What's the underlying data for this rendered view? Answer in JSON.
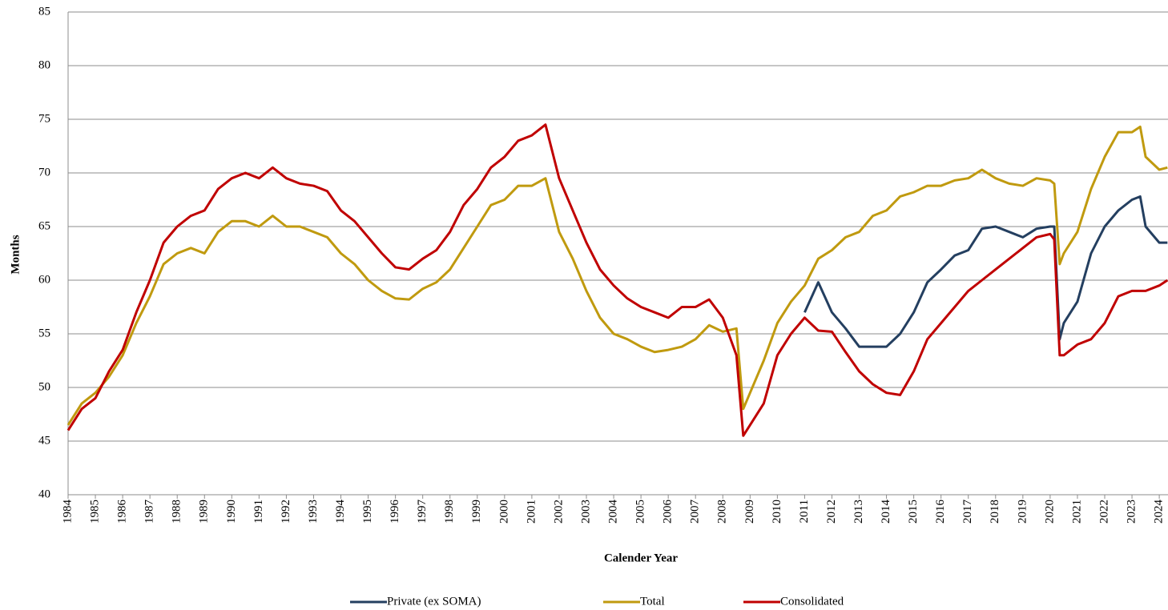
{
  "chart_data": {
    "type": "line",
    "xlabel": "Calender Year",
    "ylabel": "Months",
    "xlim": [
      1984,
      2024.32
    ],
    "xticks": [
      1984,
      1985,
      1986,
      1987,
      1988,
      1989,
      1990,
      1991,
      1992,
      1993,
      1994,
      1995,
      1996,
      1997,
      1998,
      1999,
      2000,
      2001,
      2002,
      2003,
      2004,
      2005,
      2006,
      2007,
      2008,
      2009,
      2010,
      2011,
      2012,
      2013,
      2014,
      2015,
      2016,
      2017,
      2018,
      2019,
      2020,
      2021,
      2022,
      2023,
      2024
    ],
    "ylim": [
      40,
      85
    ],
    "yticks": [
      40,
      45,
      50,
      55,
      60,
      65,
      70,
      75,
      80,
      85
    ],
    "grid": true,
    "legend": "bottom",
    "x": [
      1984,
      1984.5,
      1985,
      1985.5,
      1986,
      1986.5,
      1987,
      1987.5,
      1988,
      1988.5,
      1989,
      1989.5,
      1990,
      1990.5,
      1991,
      1991.5,
      1992,
      1992.5,
      1993,
      1993.5,
      1994,
      1994.5,
      1995,
      1995.5,
      1996,
      1996.5,
      1997,
      1997.5,
      1998,
      1998.5,
      1999,
      1999.5,
      2000,
      2000.5,
      2001,
      2001.5,
      2002,
      2002.5,
      2003,
      2003.5,
      2004,
      2004.5,
      2005,
      2005.5,
      2006,
      2006.5,
      2007,
      2007.5,
      2008,
      2008.5,
      2008.75,
      2009,
      2009.5,
      2010,
      2010.5,
      2011,
      2011.5,
      2012,
      2012.5,
      2013,
      2013.5,
      2014,
      2014.5,
      2015,
      2015.5,
      2016,
      2016.5,
      2017,
      2017.5,
      2018,
      2018.5,
      2019,
      2019.5,
      2020,
      2020.15,
      2020.35,
      2020.5,
      2021,
      2021.5,
      2022,
      2022.5,
      2023,
      2023.3,
      2023.5,
      2024,
      2024.3
    ],
    "series": [
      {
        "name": "Private (ex SOMA)",
        "color": "#243f60",
        "values": [
          null,
          null,
          null,
          null,
          null,
          null,
          null,
          null,
          null,
          null,
          null,
          null,
          null,
          null,
          null,
          null,
          null,
          null,
          null,
          null,
          null,
          null,
          null,
          null,
          null,
          null,
          null,
          null,
          null,
          null,
          null,
          null,
          null,
          null,
          null,
          null,
          null,
          null,
          null,
          null,
          null,
          null,
          null,
          null,
          null,
          null,
          null,
          null,
          null,
          null,
          null,
          null,
          null,
          null,
          null,
          57,
          59.8,
          57,
          55.5,
          53.8,
          53.8,
          53.8,
          55,
          57,
          59.8,
          61,
          62.3,
          62.8,
          64.8,
          65,
          64.5,
          64,
          64.8,
          65,
          65,
          54.5,
          56,
          58,
          62.5,
          65,
          66.5,
          67.5,
          67.8,
          65,
          63.5,
          63.5
        ]
      },
      {
        "name": "Total",
        "color": "#c09a0f",
        "values": [
          46.5,
          48.5,
          49.5,
          51,
          53,
          56,
          58.5,
          61.5,
          62.5,
          63,
          62.5,
          64.5,
          65.5,
          65.5,
          65,
          66,
          65,
          65,
          64.5,
          64,
          62.5,
          61.5,
          60,
          59,
          58.3,
          58.2,
          59.2,
          59.8,
          61,
          63,
          65,
          67,
          67.5,
          68.8,
          68.8,
          69.5,
          64.5,
          62,
          59,
          56.5,
          55,
          54.5,
          53.8,
          53.3,
          53.5,
          53.8,
          54.5,
          55.8,
          55.2,
          55.5,
          48,
          49.5,
          52.5,
          56,
          58,
          59.5,
          62,
          62.8,
          64,
          64.5,
          66,
          66.5,
          67.8,
          68.2,
          68.8,
          68.8,
          69.3,
          69.5,
          70.3,
          69.5,
          69,
          68.8,
          69.5,
          69.3,
          69,
          61.5,
          62.5,
          64.5,
          68.5,
          71.5,
          73.8,
          73.8,
          74.3,
          71.5,
          70.3,
          70.5
        ]
      },
      {
        "name": "Consolidated",
        "color": "#c00000",
        "values": [
          46,
          48,
          49,
          51.5,
          53.5,
          57,
          60,
          63.5,
          65,
          66,
          66.5,
          68.5,
          69.5,
          70,
          69.5,
          70.5,
          69.5,
          69,
          68.8,
          68.3,
          66.5,
          65.5,
          64,
          62.5,
          61.2,
          61,
          62,
          62.8,
          64.5,
          67,
          68.5,
          70.5,
          71.5,
          73,
          73.5,
          74.5,
          69.5,
          66.5,
          63.5,
          61,
          59.5,
          58.3,
          57.5,
          57,
          56.5,
          57.5,
          57.5,
          58.2,
          56.5,
          53,
          45.5,
          46.5,
          48.5,
          53,
          55,
          56.5,
          55.3,
          55.2,
          53.3,
          51.5,
          50.3,
          49.5,
          49.3,
          51.5,
          54.5,
          56,
          57.5,
          59,
          60,
          61,
          62,
          63,
          64,
          64.3,
          63.8,
          53,
          53,
          54,
          54.5,
          56,
          58.5,
          59,
          59,
          59,
          59.5,
          60
        ]
      }
    ]
  }
}
